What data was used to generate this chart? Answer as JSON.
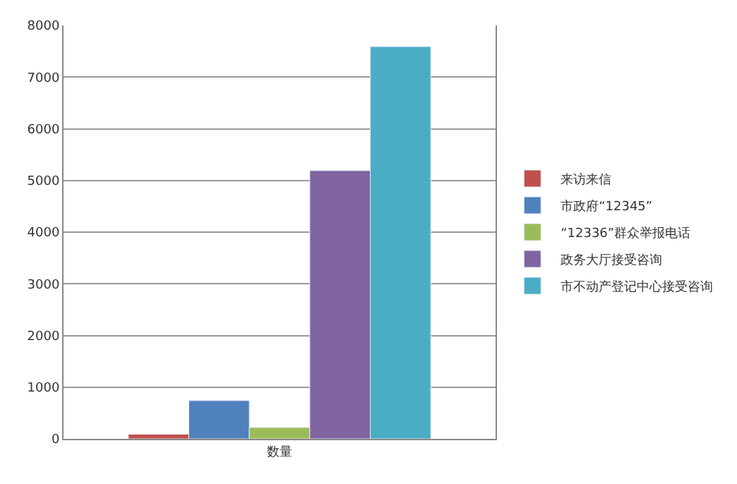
{
  "chart_data": {
    "type": "bar",
    "categories": [
      "数量"
    ],
    "series": [
      {
        "name": "来访来信",
        "color": "#c0504d",
        "values": [
          90
        ]
      },
      {
        "name": "市政府“12345”",
        "color": "#4f81bd",
        "values": [
          740
        ]
      },
      {
        "name": "“12336”群众举报电话",
        "color": "#9bbb59",
        "values": [
          220
        ]
      },
      {
        "name": "政务大厅接受咨询",
        "color": "#8064a2",
        "values": [
          5190
        ]
      },
      {
        "name": "市不动产登记中心接受咨询",
        "color": "#4bacc6",
        "values": [
          7590
        ]
      }
    ],
    "ylim": [
      0,
      8000
    ],
    "yticks": [
      0,
      1000,
      2000,
      3000,
      4000,
      5000,
      6000,
      7000,
      8000
    ],
    "grid": "y",
    "legend": "right"
  }
}
